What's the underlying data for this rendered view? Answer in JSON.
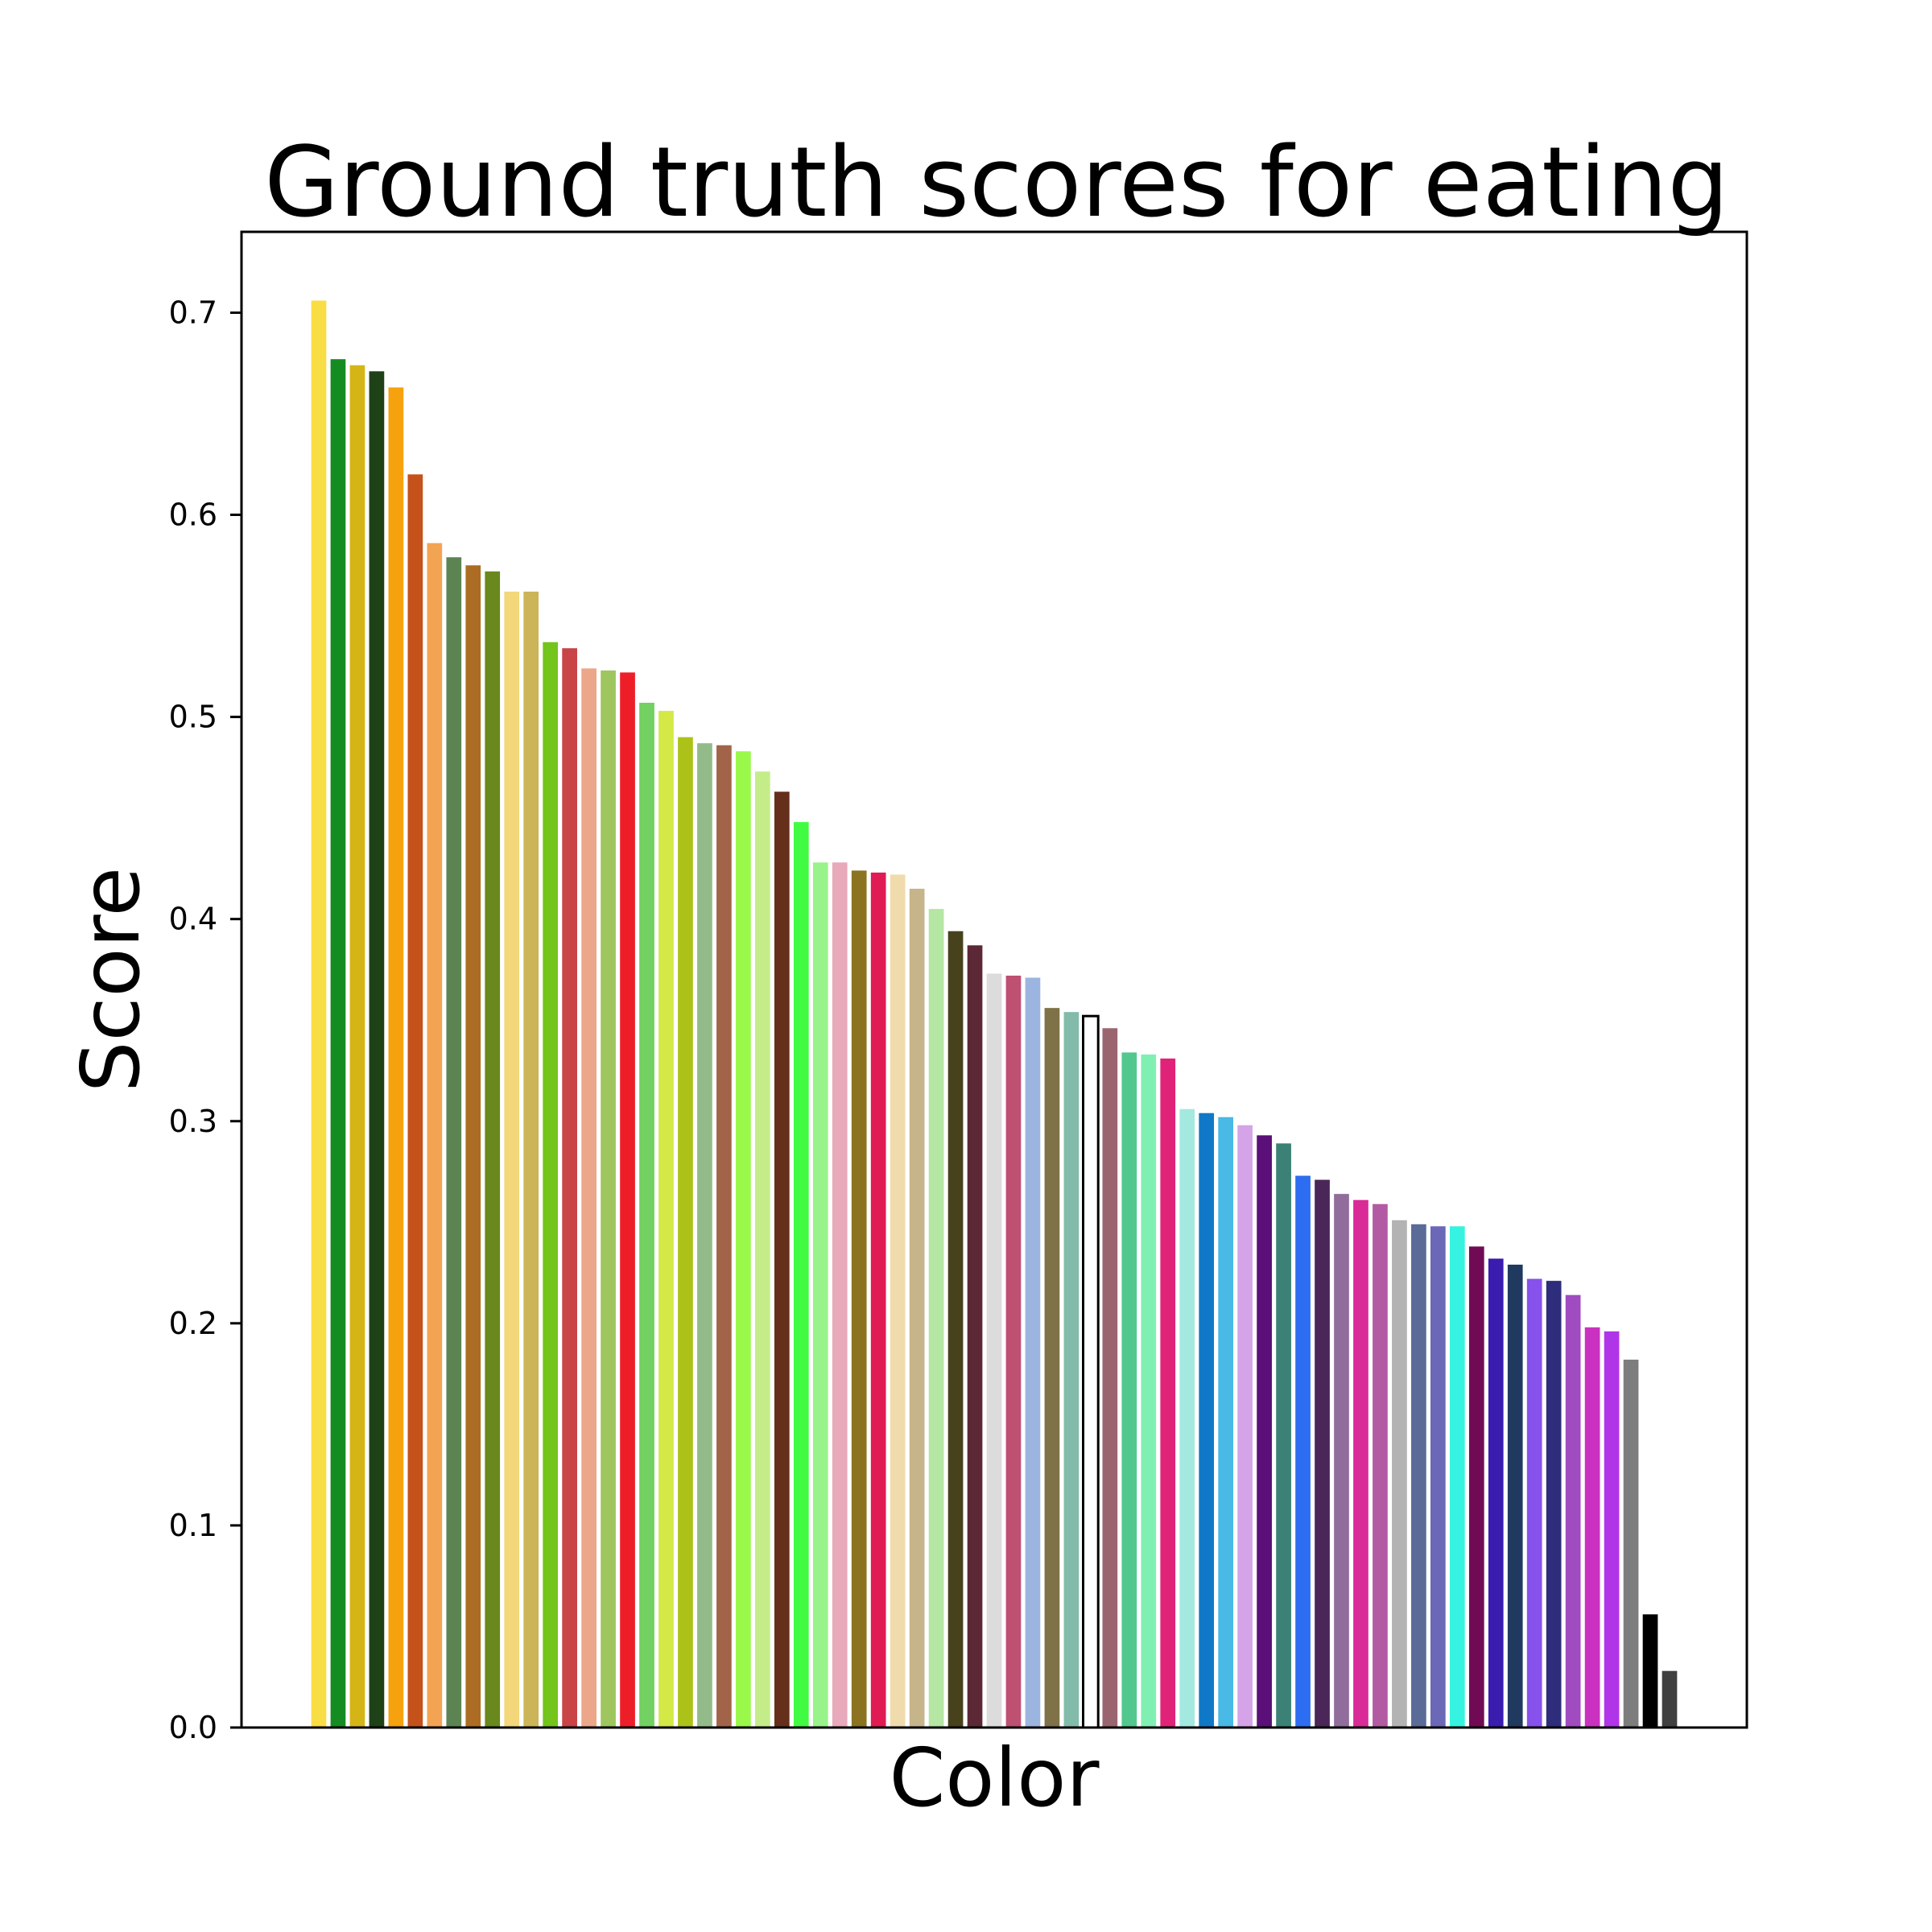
{
  "chart_data": {
    "type": "bar",
    "title": "Ground truth scores for eating",
    "xlabel": "Color",
    "ylabel": "Score",
    "ylim": [
      0,
      0.74
    ],
    "yticks": [
      {
        "value": 0.0,
        "label": "0.0"
      },
      {
        "value": 0.1,
        "label": "0.1"
      },
      {
        "value": 0.2,
        "label": "0.2"
      },
      {
        "value": 0.3,
        "label": "0.3"
      },
      {
        "value": 0.4,
        "label": "0.4"
      },
      {
        "value": 0.5,
        "label": "0.5"
      },
      {
        "value": 0.6,
        "label": "0.6"
      },
      {
        "value": 0.7,
        "label": "0.7"
      }
    ],
    "grid": false,
    "legend": "none",
    "bars": [
      {
        "value": 0.706,
        "color": "#f9dd45"
      },
      {
        "value": 0.677,
        "color": "#158c21"
      },
      {
        "value": 0.674,
        "color": "#d5b516"
      },
      {
        "value": 0.671,
        "color": "#1e4118"
      },
      {
        "value": 0.663,
        "color": "#f5a20e"
      },
      {
        "value": 0.62,
        "color": "#c4521a"
      },
      {
        "value": 0.586,
        "color": "#f3a453"
      },
      {
        "value": 0.579,
        "color": "#5b8452"
      },
      {
        "value": 0.575,
        "color": "#ad6c23"
      },
      {
        "value": 0.572,
        "color": "#69881d"
      },
      {
        "value": 0.562,
        "color": "#f4d77b"
      },
      {
        "value": 0.562,
        "color": "#ccb458"
      },
      {
        "value": 0.537,
        "color": "#73c41b"
      },
      {
        "value": 0.534,
        "color": "#c84447"
      },
      {
        "value": 0.524,
        "color": "#eca689"
      },
      {
        "value": 0.523,
        "color": "#9fc55f"
      },
      {
        "value": 0.522,
        "color": "#ee1e28"
      },
      {
        "value": 0.507,
        "color": "#73d062"
      },
      {
        "value": 0.503,
        "color": "#d4e846"
      },
      {
        "value": 0.49,
        "color": "#adc219"
      },
      {
        "value": 0.487,
        "color": "#93bb8a"
      },
      {
        "value": 0.486,
        "color": "#a16448"
      },
      {
        "value": 0.483,
        "color": "#9af84b"
      },
      {
        "value": 0.473,
        "color": "#c4ed89"
      },
      {
        "value": 0.463,
        "color": "#652f1b"
      },
      {
        "value": 0.448,
        "color": "#41fb43"
      },
      {
        "value": 0.428,
        "color": "#97f38a"
      },
      {
        "value": 0.428,
        "color": "#e8a9ba"
      },
      {
        "value": 0.424,
        "color": "#8c7322"
      },
      {
        "value": 0.423,
        "color": "#e01b53"
      },
      {
        "value": 0.422,
        "color": "#f0dbad"
      },
      {
        "value": 0.415,
        "color": "#c6b58b"
      },
      {
        "value": 0.405,
        "color": "#b5e6a3"
      },
      {
        "value": 0.394,
        "color": "#47421c"
      },
      {
        "value": 0.387,
        "color": "#5d2836"
      },
      {
        "value": 0.373,
        "color": "#dcdcdc"
      },
      {
        "value": 0.372,
        "color": "#be5072"
      },
      {
        "value": 0.371,
        "color": "#9cb5e0"
      },
      {
        "value": 0.356,
        "color": "#7f7249"
      },
      {
        "value": 0.354,
        "color": "#83bbab"
      },
      {
        "value": 0.352,
        "color": "#ffffff",
        "outline": "#000000"
      },
      {
        "value": 0.346,
        "color": "#9b6570"
      },
      {
        "value": 0.334,
        "color": "#52c88e"
      },
      {
        "value": 0.333,
        "color": "#80f0b2"
      },
      {
        "value": 0.331,
        "color": "#e02379"
      },
      {
        "value": 0.306,
        "color": "#a4e9df"
      },
      {
        "value": 0.304,
        "color": "#1079c7"
      },
      {
        "value": 0.302,
        "color": "#49b9e5"
      },
      {
        "value": 0.298,
        "color": "#d5a4e8"
      },
      {
        "value": 0.293,
        "color": "#5b0f78"
      },
      {
        "value": 0.289,
        "color": "#3b8176"
      },
      {
        "value": 0.273,
        "color": "#2d6df1"
      },
      {
        "value": 0.271,
        "color": "#4a2758"
      },
      {
        "value": 0.264,
        "color": "#916d9c"
      },
      {
        "value": 0.261,
        "color": "#d92a98"
      },
      {
        "value": 0.259,
        "color": "#b25ba3"
      },
      {
        "value": 0.251,
        "color": "#b3b3b3"
      },
      {
        "value": 0.249,
        "color": "#5b6b98"
      },
      {
        "value": 0.248,
        "color": "#6a68b7"
      },
      {
        "value": 0.248,
        "color": "#35f3e0"
      },
      {
        "value": 0.238,
        "color": "#710a54"
      },
      {
        "value": 0.232,
        "color": "#3a1caf"
      },
      {
        "value": 0.229,
        "color": "#1f3a5e"
      },
      {
        "value": 0.222,
        "color": "#8751ec"
      },
      {
        "value": 0.221,
        "color": "#2e2d7c"
      },
      {
        "value": 0.214,
        "color": "#a14bc1"
      },
      {
        "value": 0.198,
        "color": "#cb31c1"
      },
      {
        "value": 0.196,
        "color": "#b135e8"
      },
      {
        "value": 0.182,
        "color": "#7d7d7d"
      },
      {
        "value": 0.056,
        "color": "#000000"
      },
      {
        "value": 0.028,
        "color": "#404040"
      }
    ]
  }
}
